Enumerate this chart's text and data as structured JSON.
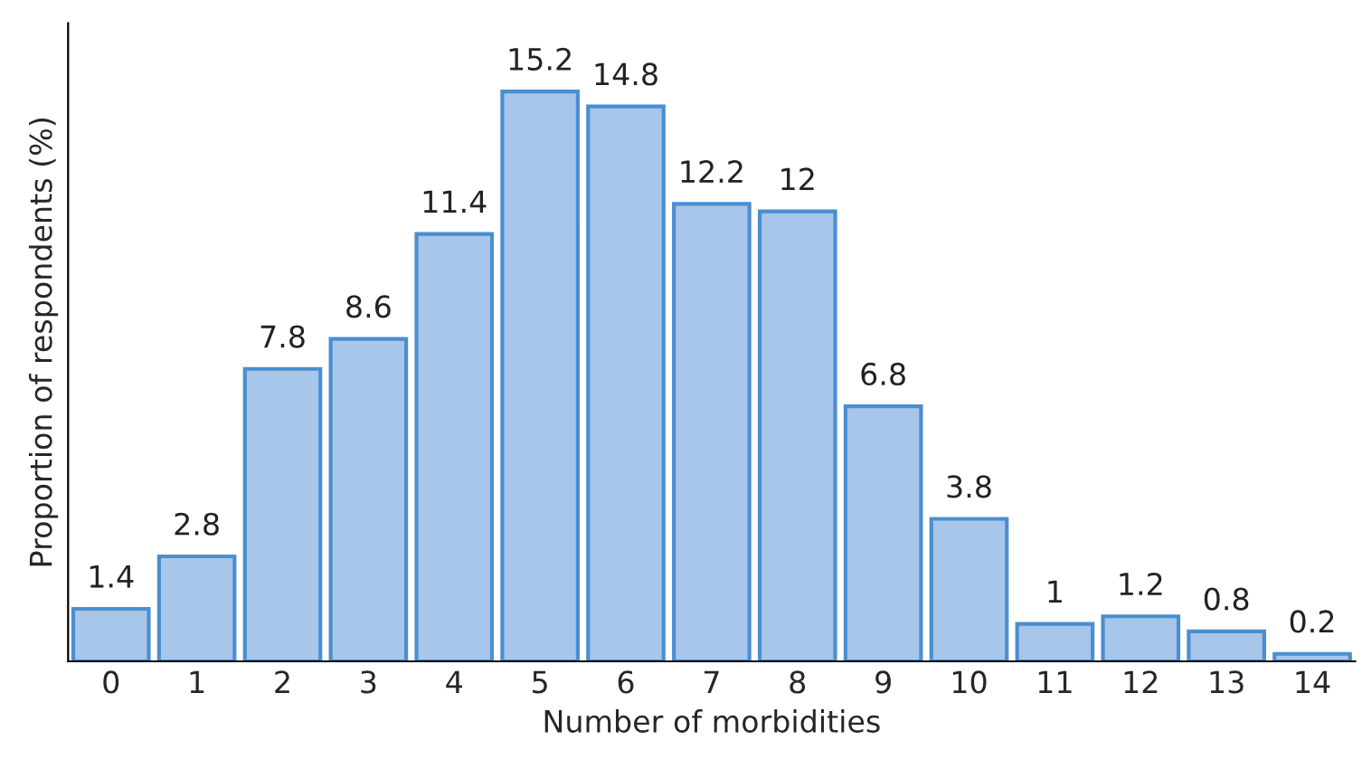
{
  "chart_data": {
    "type": "bar",
    "xlabel": "Number of morbidities",
    "ylabel": "Proportion of respondents (%)",
    "categories": [
      "0",
      "1",
      "2",
      "3",
      "4",
      "5",
      "6",
      "7",
      "8",
      "9",
      "10",
      "11",
      "12",
      "13",
      "14"
    ],
    "values": [
      1.4,
      2.8,
      7.8,
      8.6,
      11.4,
      15.2,
      14.8,
      12.2,
      12,
      6.8,
      3.8,
      1,
      1.2,
      0.8,
      0.2
    ],
    "color": "#a8c6ea",
    "data_labels": true,
    "grid": false,
    "legend": false
  }
}
